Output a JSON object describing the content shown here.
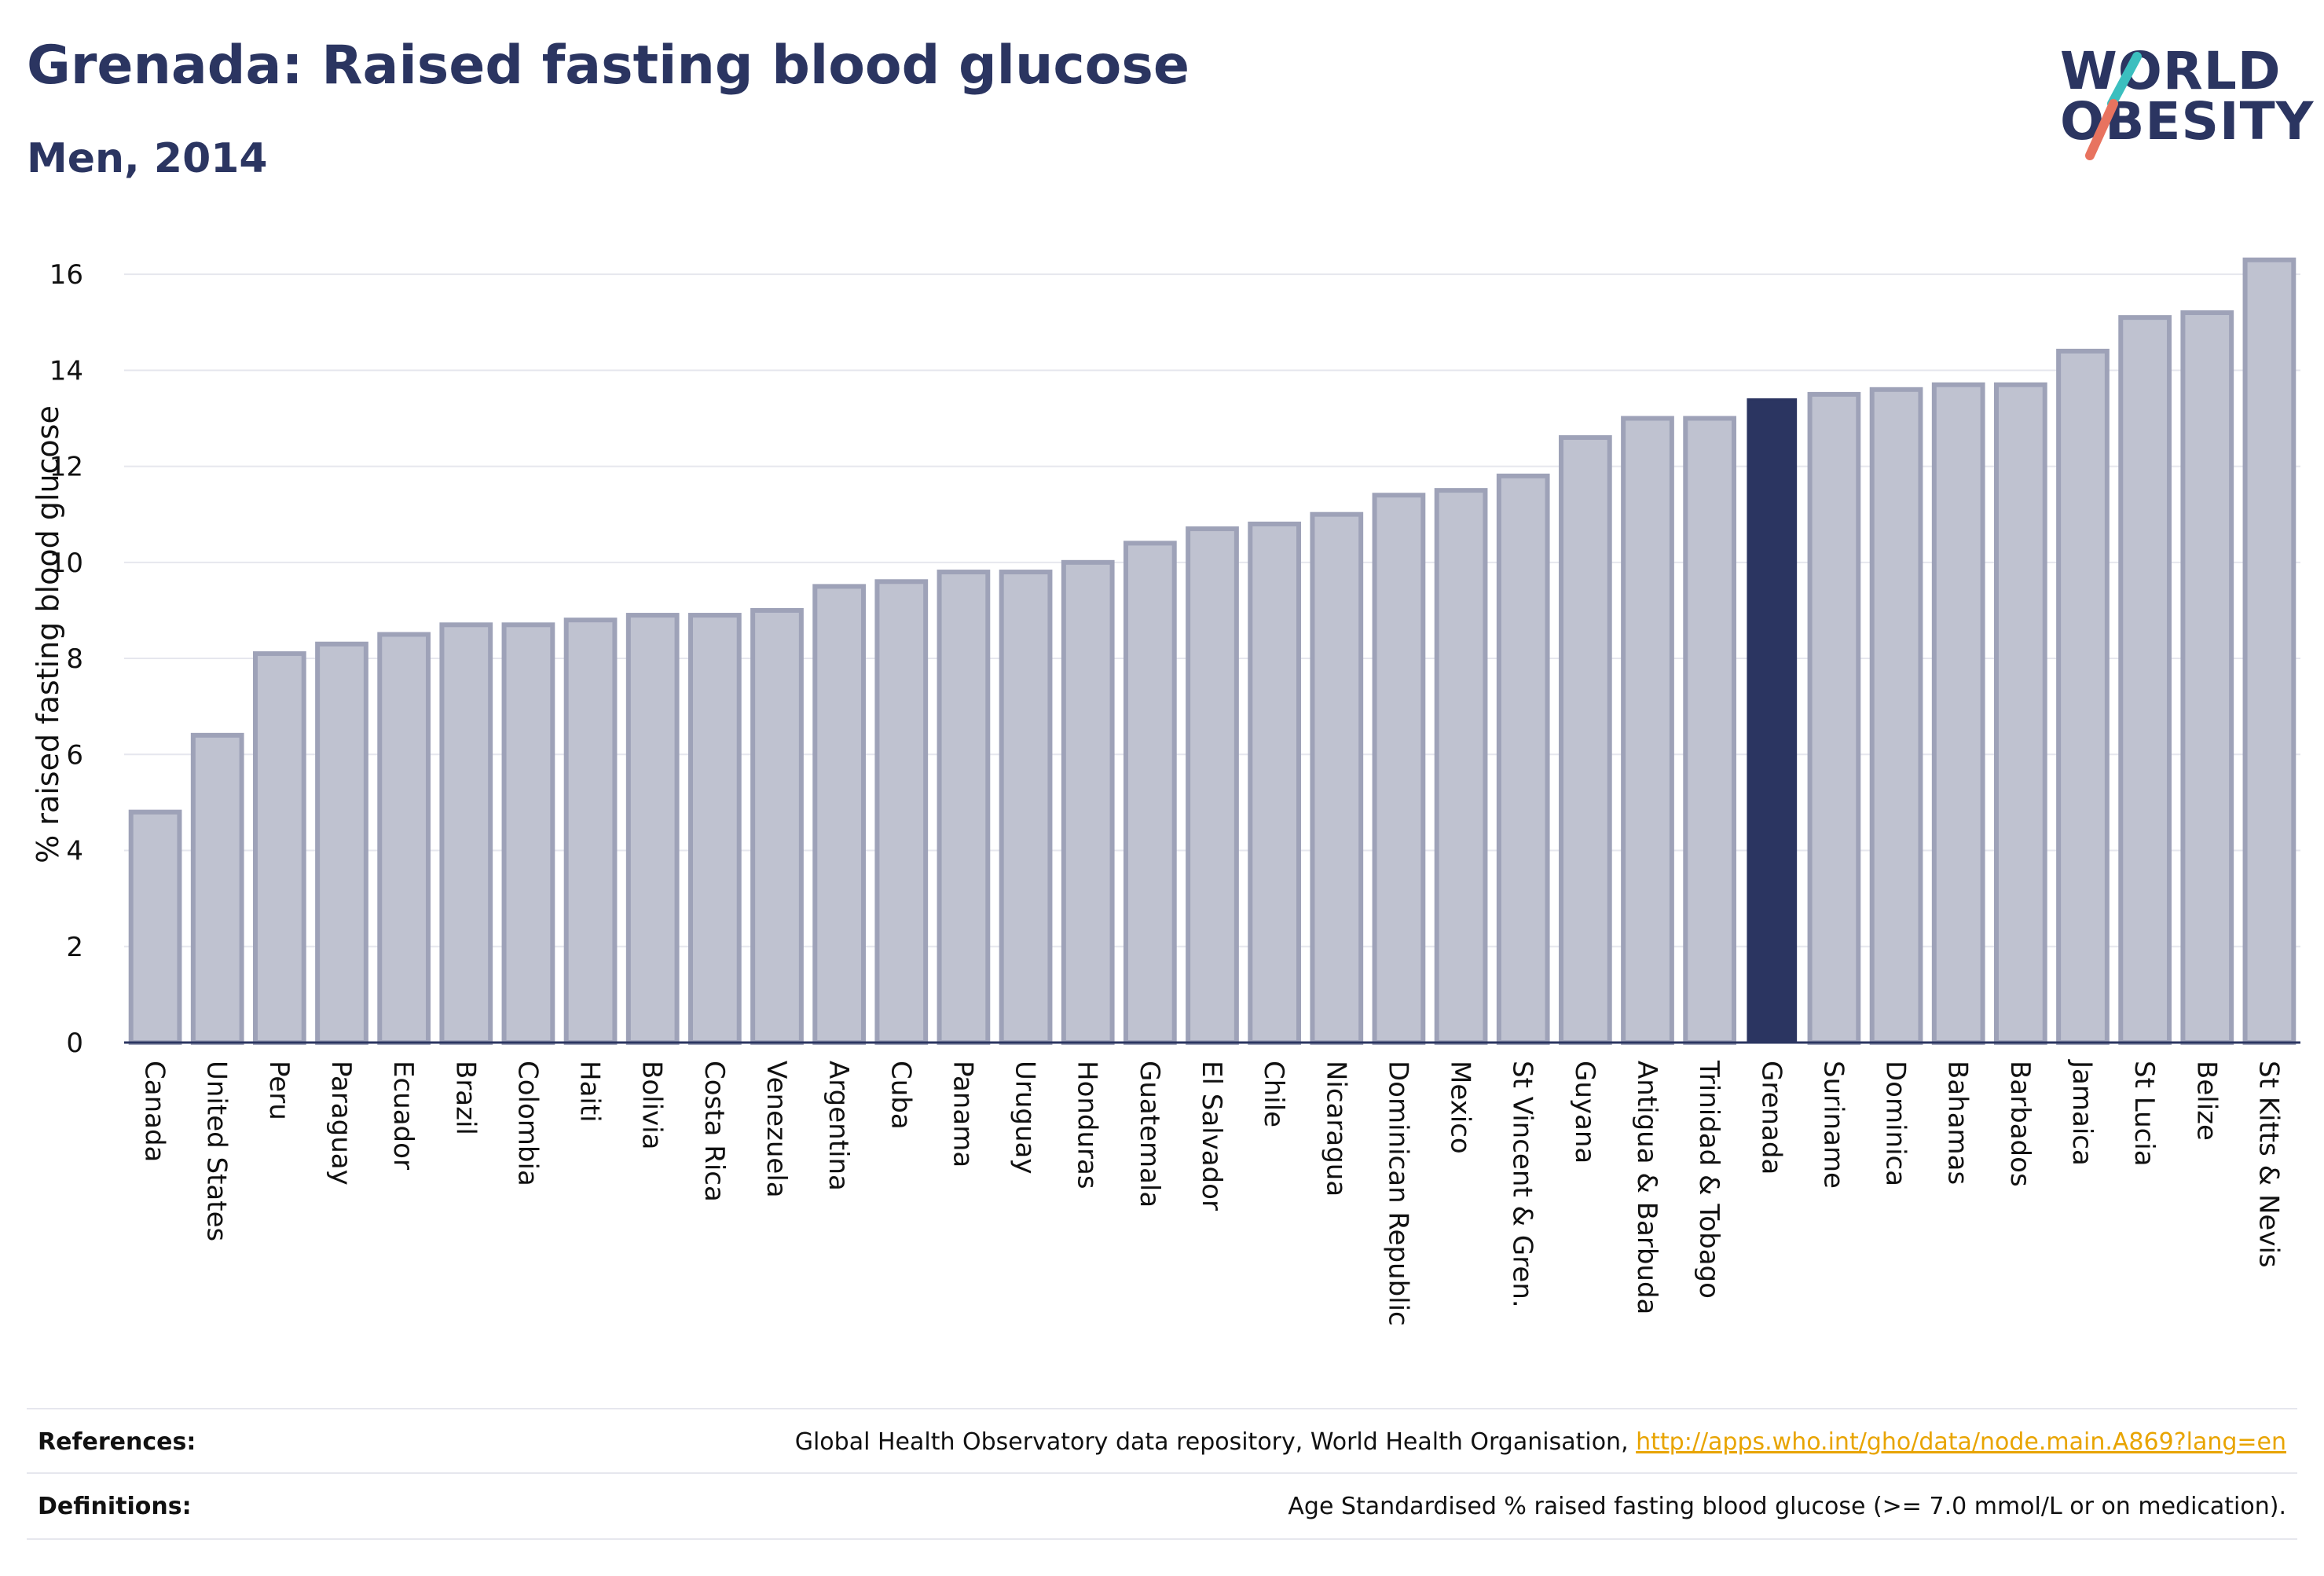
{
  "header": {
    "title": "Grenada: Raised fasting blood glucose",
    "subtitle": "Men, 2014"
  },
  "logo": {
    "line1": "WORLD",
    "line2": "OBESITY",
    "accent_teal": "#3bbfbf",
    "accent_coral": "#e8735f"
  },
  "colors": {
    "bar_fill": "#bfc2d0",
    "bar_stroke": "#9ea2b8",
    "highlight": "#2b3561",
    "grid": "#e6e7ee",
    "axis": "#2b3561"
  },
  "chart_data": {
    "type": "bar",
    "title": "Grenada: Raised fasting blood glucose",
    "subtitle": "Men, 2014",
    "xlabel": "",
    "ylabel": "% raised fasting blood glucose",
    "ylim": [
      0,
      17
    ],
    "yticks": [
      0,
      2,
      4,
      6,
      8,
      10,
      12,
      14,
      16
    ],
    "grid": true,
    "legend": "none",
    "highlight": "Grenada",
    "categories": [
      "Canada",
      "United States",
      "Peru",
      "Paraguay",
      "Ecuador",
      "Brazil",
      "Colombia",
      "Haiti",
      "Bolivia",
      "Costa Rica",
      "Venezuela",
      "Argentina",
      "Cuba",
      "Panama",
      "Uruguay",
      "Honduras",
      "Guatemala",
      "El Salvador",
      "Chile",
      "Nicaragua",
      "Dominican Republic",
      "Mexico",
      "St Vincent & Gren.",
      "Guyana",
      "Antigua & Barbuda",
      "Trinidad & Tobago",
      "Grenada",
      "Suriname",
      "Dominica",
      "Bahamas",
      "Barbados",
      "Jamaica",
      "St Lucia",
      "Belize",
      "St Kitts & Nevis"
    ],
    "values": [
      4.8,
      6.4,
      8.1,
      8.3,
      8.5,
      8.7,
      8.7,
      8.8,
      8.9,
      8.9,
      9.0,
      9.5,
      9.6,
      9.8,
      9.8,
      10.0,
      10.4,
      10.7,
      10.8,
      11.0,
      11.4,
      11.5,
      11.8,
      12.6,
      13.0,
      13.0,
      13.4,
      13.5,
      13.6,
      13.7,
      13.7,
      14.4,
      15.1,
      15.2,
      16.3
    ]
  },
  "footer": {
    "references_label": "References:",
    "references_text": "Global Health Observatory data repository, World Health Organisation, ",
    "references_link": "http://apps.who.int/gho/data/node.main.A869?lang=en",
    "definitions_label": "Definitions:",
    "definitions_text": "Age Standardised % raised fasting blood glucose (>= 7.0 mmol/L or on medication)."
  }
}
